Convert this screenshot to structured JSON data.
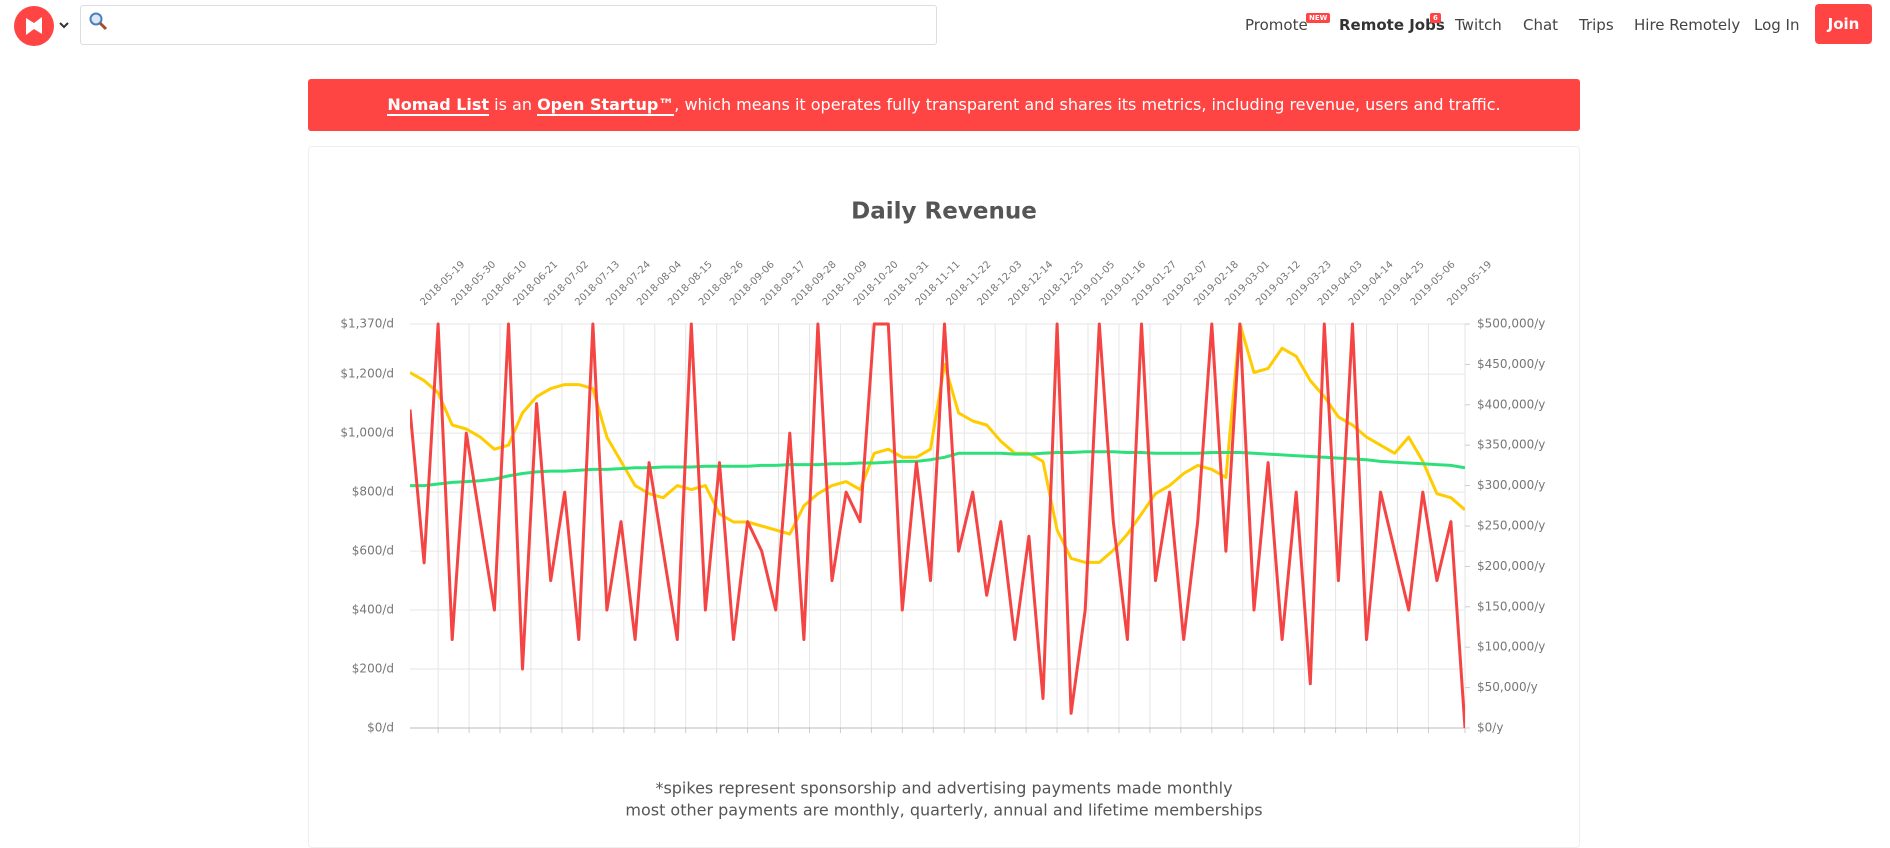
{
  "nav": {
    "items": [
      "Promote",
      "Remote Jobs",
      "Twitch",
      "Chat",
      "Trips",
      "Hire Remotely",
      "Log In"
    ],
    "badges": [
      "NEW",
      "6"
    ],
    "join": "Join"
  },
  "banner": {
    "parts": [
      "Nomad List",
      " is an ",
      "Open Startup™",
      ", which means it operates fully transparent and shares its metrics, including revenue, users and traffic."
    ]
  },
  "chart_data": {
    "type": "line",
    "title": "Daily Revenue",
    "grid": true,
    "x": [
      "2018-05-09",
      "2018-05-14",
      "2018-05-19",
      "2018-05-24",
      "2018-05-29",
      "2018-06-03",
      "2018-06-08",
      "2018-06-13",
      "2018-06-18",
      "2018-06-23",
      "2018-06-28",
      "2018-07-03",
      "2018-07-08",
      "2018-07-13",
      "2018-07-18",
      "2018-07-23",
      "2018-07-28",
      "2018-08-02",
      "2018-08-07",
      "2018-08-12",
      "2018-08-17",
      "2018-08-22",
      "2018-08-27",
      "2018-09-01",
      "2018-09-06",
      "2018-09-11",
      "2018-09-16",
      "2018-09-21",
      "2018-09-26",
      "2018-10-01",
      "2018-10-06",
      "2018-10-11",
      "2018-10-16",
      "2018-10-21",
      "2018-10-26",
      "2018-10-31",
      "2018-11-05",
      "2018-11-10",
      "2018-11-15",
      "2018-11-20",
      "2018-11-25",
      "2018-11-30",
      "2018-12-05",
      "2018-12-10",
      "2018-12-15",
      "2018-12-20",
      "2018-12-25",
      "2018-12-30",
      "2019-01-04",
      "2019-01-09",
      "2019-01-14",
      "2019-01-19",
      "2019-01-24",
      "2019-01-29",
      "2019-02-03",
      "2019-02-08",
      "2019-02-13",
      "2019-02-18",
      "2019-02-23",
      "2019-02-28",
      "2019-03-05",
      "2019-03-10",
      "2019-03-15",
      "2019-03-20",
      "2019-03-25",
      "2019-03-30",
      "2019-04-04",
      "2019-04-09",
      "2019-04-14",
      "2019-04-19",
      "2019-04-24",
      "2019-04-29",
      "2019-05-04",
      "2019-05-09",
      "2019-05-14",
      "2019-05-19"
    ],
    "xlim": [
      "2018-05-09",
      "2019-05-19"
    ],
    "xticks": [
      "2018-05-19",
      "2018-05-30",
      "2018-06-10",
      "2018-06-21",
      "2018-07-02",
      "2018-07-13",
      "2018-07-24",
      "2018-08-04",
      "2018-08-15",
      "2018-08-26",
      "2018-09-06",
      "2018-09-17",
      "2018-09-28",
      "2018-10-09",
      "2018-10-20",
      "2018-10-31",
      "2018-11-11",
      "2018-11-22",
      "2018-12-03",
      "2018-12-14",
      "2018-12-25",
      "2019-01-05",
      "2019-01-16",
      "2019-01-27",
      "2019-02-07",
      "2019-02-18",
      "2019-03-01",
      "2019-03-12",
      "2019-03-23",
      "2019-04-03",
      "2019-04-14",
      "2019-04-25",
      "2019-05-06",
      "2019-05-19"
    ],
    "ylim": [
      0,
      1370
    ],
    "yticks": [
      {
        "value": 0,
        "label": "$0/d"
      },
      {
        "value": 200,
        "label": "$200/d"
      },
      {
        "value": 400,
        "label": "$400/d"
      },
      {
        "value": 600,
        "label": "$600/d"
      },
      {
        "value": 800,
        "label": "$800/d"
      },
      {
        "value": 1000,
        "label": "$1,000/d"
      },
      {
        "value": 1200,
        "label": "$1,200/d"
      },
      {
        "value": 1370,
        "label": "$1,370/d"
      }
    ],
    "y2lim": [
      0,
      500000
    ],
    "y2ticks": [
      {
        "value": 0,
        "label": "$0/y"
      },
      {
        "value": 50000,
        "label": "$50,000/y"
      },
      {
        "value": 100000,
        "label": "$100,000/y"
      },
      {
        "value": 150000,
        "label": "$150,000/y"
      },
      {
        "value": 200000,
        "label": "$200,000/y"
      },
      {
        "value": 250000,
        "label": "$250,000/y"
      },
      {
        "value": 300000,
        "label": "$300,000/y"
      },
      {
        "value": 350000,
        "label": "$350,000/y"
      },
      {
        "value": 400000,
        "label": "$400,000/y"
      },
      {
        "value": 450000,
        "label": "$450,000/y"
      },
      {
        "value": 500000,
        "label": "$500,000/y"
      }
    ],
    "series": [
      {
        "color": "#ffcc00",
        "axis": "y2",
        "values": [
          440000,
          430000,
          415000,
          375000,
          370000,
          360000,
          345000,
          350000,
          390000,
          410000,
          420000,
          425000,
          425000,
          420000,
          360000,
          330000,
          300000,
          290000,
          285000,
          300000,
          295000,
          300000,
          265000,
          255000,
          255000,
          250000,
          245000,
          240000,
          275000,
          290000,
          300000,
          305000,
          295000,
          340000,
          345000,
          335000,
          335000,
          345000,
          450000,
          390000,
          380000,
          375000,
          355000,
          340000,
          340000,
          330000,
          245000,
          210000,
          205000,
          205000,
          220000,
          240000,
          265000,
          290000,
          300000,
          315000,
          325000,
          320000,
          310000,
          500000,
          440000,
          445000,
          470000,
          460000,
          430000,
          410000,
          385000,
          375000,
          360000,
          350000,
          340000,
          360000,
          330000,
          290000,
          285000,
          270000
        ]
      },
      {
        "color": "#2ee07a",
        "axis": "y2",
        "values": [
          300000,
          300000,
          302000,
          304000,
          305000,
          306000,
          308000,
          312000,
          315000,
          317000,
          318000,
          318000,
          319000,
          320000,
          320000,
          321000,
          322000,
          322000,
          323000,
          323000,
          323000,
          324000,
          324000,
          324000,
          324000,
          325000,
          325000,
          326000,
          326000,
          326000,
          327000,
          327000,
          328000,
          328000,
          329000,
          330000,
          330000,
          332000,
          335000,
          340000,
          340000,
          340000,
          340000,
          339000,
          339000,
          340000,
          341000,
          341000,
          342000,
          342000,
          342000,
          341000,
          341000,
          340000,
          340000,
          340000,
          340000,
          341000,
          341000,
          341000,
          340000,
          339000,
          338000,
          337000,
          336000,
          335000,
          334000,
          333000,
          332000,
          330000,
          329000,
          328000,
          327000,
          326000,
          325000,
          322000
        ]
      },
      {
        "color": "#f44444",
        "axis": "y",
        "values": [
          1080,
          560,
          1370,
          300,
          1000,
          700,
          400,
          1370,
          200,
          1100,
          500,
          800,
          300,
          1370,
          400,
          700,
          300,
          900,
          600,
          300,
          1370,
          400,
          900,
          300,
          700,
          600,
          400,
          1000,
          300,
          1370,
          500,
          800,
          700,
          1370,
          1370,
          400,
          900,
          500,
          1370,
          600,
          800,
          450,
          700,
          300,
          650,
          100,
          1370,
          50,
          400,
          1370,
          700,
          300,
          1370,
          500,
          800,
          300,
          700,
          1370,
          600,
          1370,
          400,
          900,
          300,
          800,
          150,
          1370,
          500,
          1370,
          300,
          800,
          600,
          400,
          800,
          500,
          700,
          0
        ]
      }
    ]
  },
  "notes": [
    "*spikes represent sponsorship and advertising payments made monthly",
    "most other payments are monthly, quarterly, annual and lifetime memberships"
  ]
}
